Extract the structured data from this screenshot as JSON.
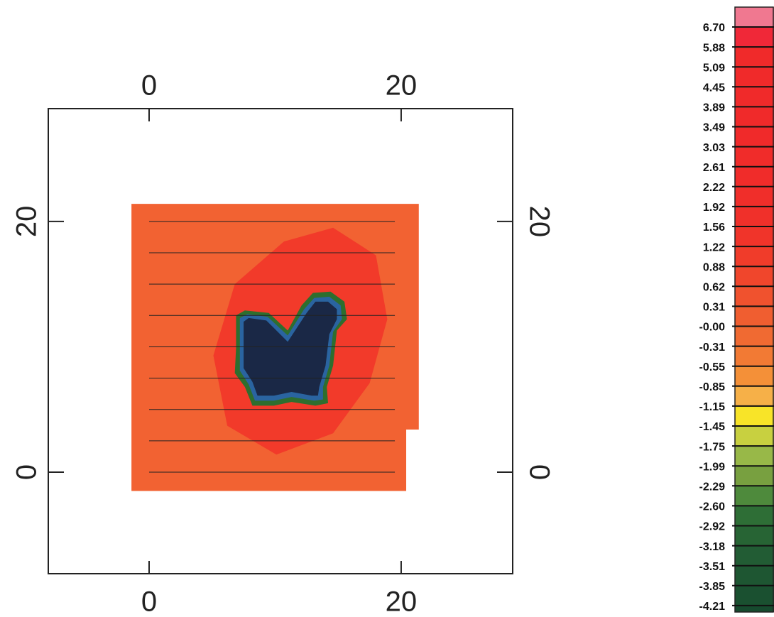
{
  "chart_data": {
    "type": "contour",
    "xlim": [
      -8,
      28.85
    ],
    "ylim": [
      -8.1,
      29.0
    ],
    "xticks": [
      0,
      20
    ],
    "yticks": [
      0,
      20
    ],
    "regions": [
      {
        "color": "#f26232",
        "x": [
          -1.4,
          21.4,
          21.4,
          20.4,
          20.4,
          -1.4
        ],
        "y": [
          21.4,
          21.4,
          3.4,
          3.4,
          -1.5,
          -1.5
        ]
      },
      {
        "color": "#f23a2a",
        "x": [
          6.8,
          10.7,
          14.6,
          18.0,
          18.9,
          17.5,
          14.6,
          10.1,
          6.2,
          5.1
        ],
        "y": [
          15.0,
          18.4,
          19.5,
          17.3,
          12.2,
          7.1,
          3.1,
          1.4,
          3.7,
          9.3
        ]
      },
      {
        "color": "#2e6e2e",
        "x": [
          6.9,
          7.6,
          9.5,
          11.0,
          12.1,
          13.0,
          14.4,
          15.5,
          15.7,
          14.9,
          14.6,
          14.1,
          14.2,
          13.2,
          11.3,
          9.9,
          8.2,
          7.6,
          6.8,
          6.9
        ],
        "y": [
          12.5,
          12.9,
          12.7,
          11.3,
          13.3,
          14.3,
          14.4,
          13.6,
          12.2,
          11.3,
          8.5,
          6.8,
          5.5,
          5.3,
          5.6,
          5.3,
          5.3,
          6.8,
          7.9,
          9.9
        ]
      },
      {
        "color": "#2a64a0",
        "x": [
          7.2,
          7.8,
          9.4,
          11.0,
          12.3,
          13.1,
          14.3,
          15.2,
          15.3,
          14.6,
          14.3,
          13.8,
          13.8,
          13.1,
          11.3,
          9.9,
          8.4,
          7.9,
          7.2,
          7.2
        ],
        "y": [
          12.3,
          12.6,
          12.4,
          10.9,
          13.0,
          13.9,
          14.0,
          13.3,
          12.2,
          11.2,
          8.5,
          6.8,
          5.8,
          5.7,
          6.0,
          5.7,
          5.7,
          7.0,
          8.1,
          9.9
        ]
      },
      {
        "color": "#1a2846",
        "x": [
          7.5,
          7.9,
          9.3,
          11.0,
          12.5,
          13.2,
          14.2,
          14.9,
          14.9,
          14.3,
          14.0,
          13.5,
          13.4,
          12.9,
          11.3,
          9.9,
          8.6,
          8.2,
          7.5,
          7.5
        ],
        "y": [
          12.0,
          12.3,
          12.1,
          10.4,
          12.7,
          13.6,
          13.6,
          13.0,
          12.2,
          11.0,
          8.5,
          6.8,
          6.1,
          6.1,
          6.4,
          6.1,
          6.1,
          7.2,
          8.3,
          9.9
        ]
      }
    ],
    "track_lines": {
      "x": [
        0,
        19.5
      ],
      "y": [
        20,
        17.5,
        15,
        12.5,
        10,
        7.5,
        5,
        2.5,
        0
      ]
    },
    "colorbar": {
      "levels": [
        {
          "value": 6.7,
          "label": "6.70"
        },
        {
          "value": 5.88,
          "label": "5.88"
        },
        {
          "value": 5.09,
          "label": "5.09"
        },
        {
          "value": 4.45,
          "label": "4.45"
        },
        {
          "value": 3.89,
          "label": "3.89"
        },
        {
          "value": 3.49,
          "label": "3.49"
        },
        {
          "value": 3.03,
          "label": "3.03"
        },
        {
          "value": 2.61,
          "label": "2.61"
        },
        {
          "value": 2.22,
          "label": "2.22"
        },
        {
          "value": 1.92,
          "label": "1.92"
        },
        {
          "value": 1.56,
          "label": "1.56"
        },
        {
          "value": 1.22,
          "label": "1.22"
        },
        {
          "value": 0.88,
          "label": "0.88"
        },
        {
          "value": 0.62,
          "label": "0.62"
        },
        {
          "value": 0.31,
          "label": "0.31"
        },
        {
          "value": 0,
          "label": "-0.00"
        },
        {
          "value": -0.31,
          "label": "-0.31"
        },
        {
          "value": -0.55,
          "label": "-0.55"
        },
        {
          "value": -0.85,
          "label": "-0.85"
        },
        {
          "value": -1.15,
          "label": "-1.15"
        },
        {
          "value": -1.45,
          "label": "-1.45"
        },
        {
          "value": -1.75,
          "label": "-1.75"
        },
        {
          "value": -1.99,
          "label": "-1.99"
        },
        {
          "value": -2.29,
          "label": "-2.29"
        },
        {
          "value": -2.6,
          "label": "-2.60"
        },
        {
          "value": -2.92,
          "label": "-2.92"
        },
        {
          "value": -3.18,
          "label": "-3.18"
        },
        {
          "value": -3.51,
          "label": "-3.51"
        },
        {
          "value": -3.85,
          "label": "-3.85"
        },
        {
          "value": -4.21,
          "label": "-4.21"
        }
      ],
      "colors": [
        "#f07890",
        "#f02838",
        "#f02a2a",
        "#f02a2a",
        "#f02a2a",
        "#f02a2a",
        "#f02a2a",
        "#f02c2a",
        "#f02c2a",
        "#f02e2a",
        "#f0302a",
        "#f0342a",
        "#f03c2a",
        "#f0462c",
        "#f0522e",
        "#f05e30",
        "#f06a32",
        "#f27a34",
        "#f49038",
        "#f6b048",
        "#f8e428",
        "#c8d040",
        "#98b848",
        "#78a040",
        "#4e8a3c",
        "#2e6e36",
        "#276434",
        "#225c34",
        "#1e5632",
        "#1a5030",
        "#164a2e"
      ]
    }
  }
}
